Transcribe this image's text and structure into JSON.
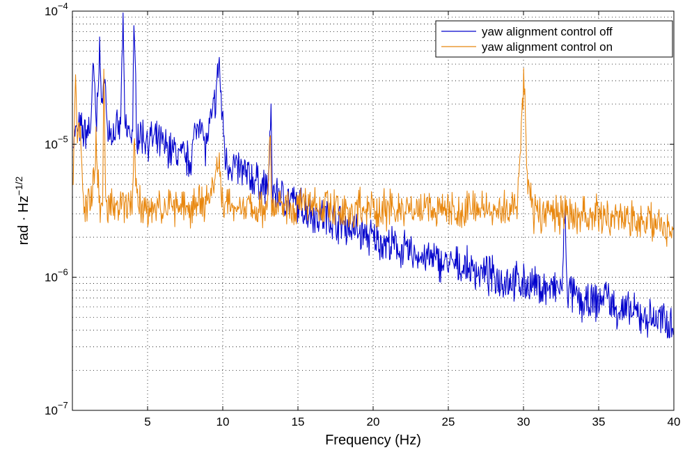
{
  "chart_data": {
    "type": "line",
    "xlabel": "Frequency (Hz)",
    "ylabel_main": "rad · Hz",
    "ylabel_exp": "−1/2",
    "xlim": [
      0,
      40
    ],
    "ylim": [
      1e-07,
      0.0001
    ],
    "yscale": "log",
    "grid": true,
    "legend_position": "top-right",
    "x_ticks": [
      {
        "value": 5,
        "label": "5"
      },
      {
        "value": 10,
        "label": "10"
      },
      {
        "value": 15,
        "label": "15"
      },
      {
        "value": 20,
        "label": "20"
      },
      {
        "value": 25,
        "label": "25"
      },
      {
        "value": 30,
        "label": "30"
      },
      {
        "value": 35,
        "label": "35"
      },
      {
        "value": 40,
        "label": "40"
      }
    ],
    "y_ticks": [
      {
        "value": 1e-07,
        "base": "10",
        "exp": "−7"
      },
      {
        "value": 1e-06,
        "base": "10",
        "exp": "−6"
      },
      {
        "value": 1e-05,
        "base": "10",
        "exp": "−5"
      },
      {
        "value": 0.0001,
        "base": "10",
        "exp": "−4"
      }
    ],
    "series": [
      {
        "name": "yaw alignment control off",
        "color": "#0000cc",
        "x": [
          0.05,
          0.4,
          0.8,
          1.2,
          1.4,
          1.6,
          1.8,
          2.0,
          2.1,
          2.3,
          2.6,
          3.0,
          3.2,
          3.35,
          3.5,
          3.8,
          4.0,
          4.1,
          4.3,
          5.0,
          6.0,
          7.0,
          7.8,
          8.2,
          8.5,
          8.8,
          9.2,
          9.6,
          9.75,
          9.9,
          10.2,
          11,
          12,
          13,
          13.2,
          13.3,
          14,
          15,
          16,
          17,
          18,
          19,
          20,
          21,
          22,
          23,
          24,
          25,
          26,
          27,
          28,
          29,
          30,
          31,
          32,
          32.6,
          32.75,
          32.9,
          33.5,
          34,
          35,
          35.5,
          36,
          37,
          38,
          39,
          40
        ],
        "y": [
          1.1e-05,
          1.3e-05,
          1.2e-05,
          1.35e-05,
          3.8e-05,
          1.3e-05,
          5.8e-05,
          1.3e-05,
          5e-05,
          1.3e-05,
          1.2e-05,
          1.25e-05,
          1.3e-05,
          8.5e-05,
          1.3e-05,
          1.25e-05,
          1.2e-05,
          7.2e-05,
          1.2e-05,
          1.1e-05,
          1e-05,
          8.5e-06,
          7.5e-06,
          1.2e-05,
          1.75e-05,
          9e-06,
          1.4e-05,
          2.5e-05,
          4.6e-05,
          2e-05,
          7.5e-06,
          6.5e-06,
          5.5e-06,
          4.6e-06,
          1.6e-05,
          4.5e-06,
          4e-06,
          3.5e-06,
          3e-06,
          2.8e-06,
          2.5e-06,
          2.2e-06,
          1.95e-06,
          1.75e-06,
          1.6e-06,
          1.45e-06,
          1.35e-06,
          1.25e-06,
          1.2e-06,
          1.1e-06,
          1e-06,
          9.5e-07,
          9e-07,
          8.5e-07,
          8e-07,
          8.5e-07,
          3.6e-06,
          8e-07,
          7e-07,
          6.2e-07,
          6.5e-07,
          7.8e-07,
          5.8e-07,
          5.5e-07,
          5e-07,
          4.8e-07,
          4.6e-07
        ]
      },
      {
        "name": "yaw alignment control on",
        "color": "#e8870e",
        "x": [
          0.05,
          0.2,
          0.3,
          0.5,
          0.8,
          1.0,
          1.2,
          1.6,
          1.8,
          2.0,
          2.1,
          2.2,
          2.5,
          3.0,
          3.3,
          3.6,
          4.0,
          4.1,
          4.3,
          5.0,
          6.0,
          7.0,
          8.0,
          9.0,
          9.5,
          9.7,
          9.9,
          10.5,
          12.0,
          13.0,
          13.15,
          13.25,
          14,
          15,
          16,
          17,
          18,
          20,
          22,
          24,
          26,
          28,
          29,
          29.6,
          29.9,
          30.05,
          30.3,
          30.7,
          32,
          34,
          35,
          36,
          38,
          40
        ],
        "y": [
          7e-06,
          2.8e-05,
          1.2e-05,
          1.3e-05,
          3e-06,
          3.6e-06,
          3.4e-06,
          1.1e-05,
          3.2e-06,
          3.3e-06,
          4.3e-05,
          3.3e-06,
          3.4e-06,
          3.2e-06,
          3.6e-06,
          3.2e-06,
          3.5e-06,
          1.2e-05,
          3.4e-06,
          3.5e-06,
          3.3e-06,
          3.5e-06,
          3.3e-06,
          3.6e-06,
          5e-06,
          9.5e-06,
          4e-06,
          3.5e-06,
          3.2e-06,
          3.5e-06,
          1.7e-05,
          3.5e-06,
          3.5e-06,
          3.3e-06,
          3.2e-06,
          3.4e-06,
          3.2e-06,
          3.3e-06,
          3.1e-06,
          3.3e-06,
          3.1e-06,
          3.2e-06,
          3.3e-06,
          3.4e-06,
          1.8e-05,
          2.9e-05,
          4.5e-06,
          3e-06,
          3.1e-06,
          2.9e-06,
          3e-06,
          2.8e-06,
          2.6e-06,
          2.4e-06
        ]
      }
    ]
  }
}
